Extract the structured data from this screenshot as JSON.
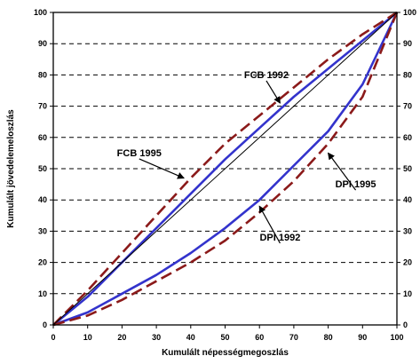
{
  "chart_data": {
    "type": "line",
    "xlabel": "Kumulált népességmegoszlás",
    "ylabel": "Kumulált jövedelemeloszlás",
    "xlim": [
      0,
      100
    ],
    "ylim": [
      0,
      100
    ],
    "x_ticks": [
      0,
      10,
      20,
      30,
      40,
      50,
      60,
      70,
      80,
      90,
      100
    ],
    "y_ticks": [
      0,
      10,
      20,
      30,
      40,
      50,
      60,
      70,
      80,
      90,
      100
    ],
    "grid": "horizontal dashed",
    "series": [
      {
        "name": "FCB 1992",
        "color": "#3333cc",
        "style": "solid",
        "points": [
          [
            0,
            0
          ],
          [
            10,
            9
          ],
          [
            20,
            20
          ],
          [
            30,
            31
          ],
          [
            40,
            42
          ],
          [
            50,
            53
          ],
          [
            60,
            63
          ],
          [
            70,
            73
          ],
          [
            80,
            82
          ],
          [
            90,
            91
          ],
          [
            100,
            100
          ]
        ]
      },
      {
        "name": "FCB 1995",
        "color": "#8b1a1a",
        "style": "dashed",
        "points": [
          [
            0,
            0
          ],
          [
            10,
            11
          ],
          [
            20,
            23
          ],
          [
            30,
            35
          ],
          [
            40,
            47
          ],
          [
            50,
            58
          ],
          [
            60,
            67
          ],
          [
            70,
            76
          ],
          [
            80,
            85
          ],
          [
            90,
            93
          ],
          [
            100,
            100
          ]
        ]
      },
      {
        "name": "DPI 1992",
        "color": "#3333cc",
        "style": "solid",
        "points": [
          [
            0,
            0
          ],
          [
            10,
            4
          ],
          [
            20,
            10
          ],
          [
            30,
            16
          ],
          [
            40,
            23
          ],
          [
            50,
            31
          ],
          [
            60,
            40
          ],
          [
            70,
            51
          ],
          [
            80,
            62
          ],
          [
            90,
            77
          ],
          [
            100,
            100
          ]
        ]
      },
      {
        "name": "DPI 1995",
        "color": "#8b1a1a",
        "style": "dashed",
        "points": [
          [
            0,
            0
          ],
          [
            10,
            3
          ],
          [
            20,
            8
          ],
          [
            30,
            14
          ],
          [
            40,
            20
          ],
          [
            50,
            27
          ],
          [
            60,
            36
          ],
          [
            70,
            46
          ],
          [
            80,
            58
          ],
          [
            90,
            73
          ],
          [
            100,
            100
          ]
        ]
      },
      {
        "name": "",
        "color": "#000000",
        "style": "thin",
        "points": [
          [
            0,
            0
          ],
          [
            100,
            100
          ]
        ]
      }
    ],
    "annotations": [
      {
        "label": "FCB 1992",
        "text_at": [
          62,
          79
        ],
        "arrow_to": [
          66,
          71
        ]
      },
      {
        "label": "FCB 1995",
        "text_at": [
          25,
          54
        ],
        "arrow_to": [
          38,
          47
        ]
      },
      {
        "label": "DPI 1995",
        "text_at": [
          88,
          44
        ],
        "arrow_to": [
          80,
          55
        ]
      },
      {
        "label": "DPI 1992",
        "text_at": [
          66,
          27
        ],
        "arrow_to": [
          60,
          38
        ]
      }
    ]
  }
}
